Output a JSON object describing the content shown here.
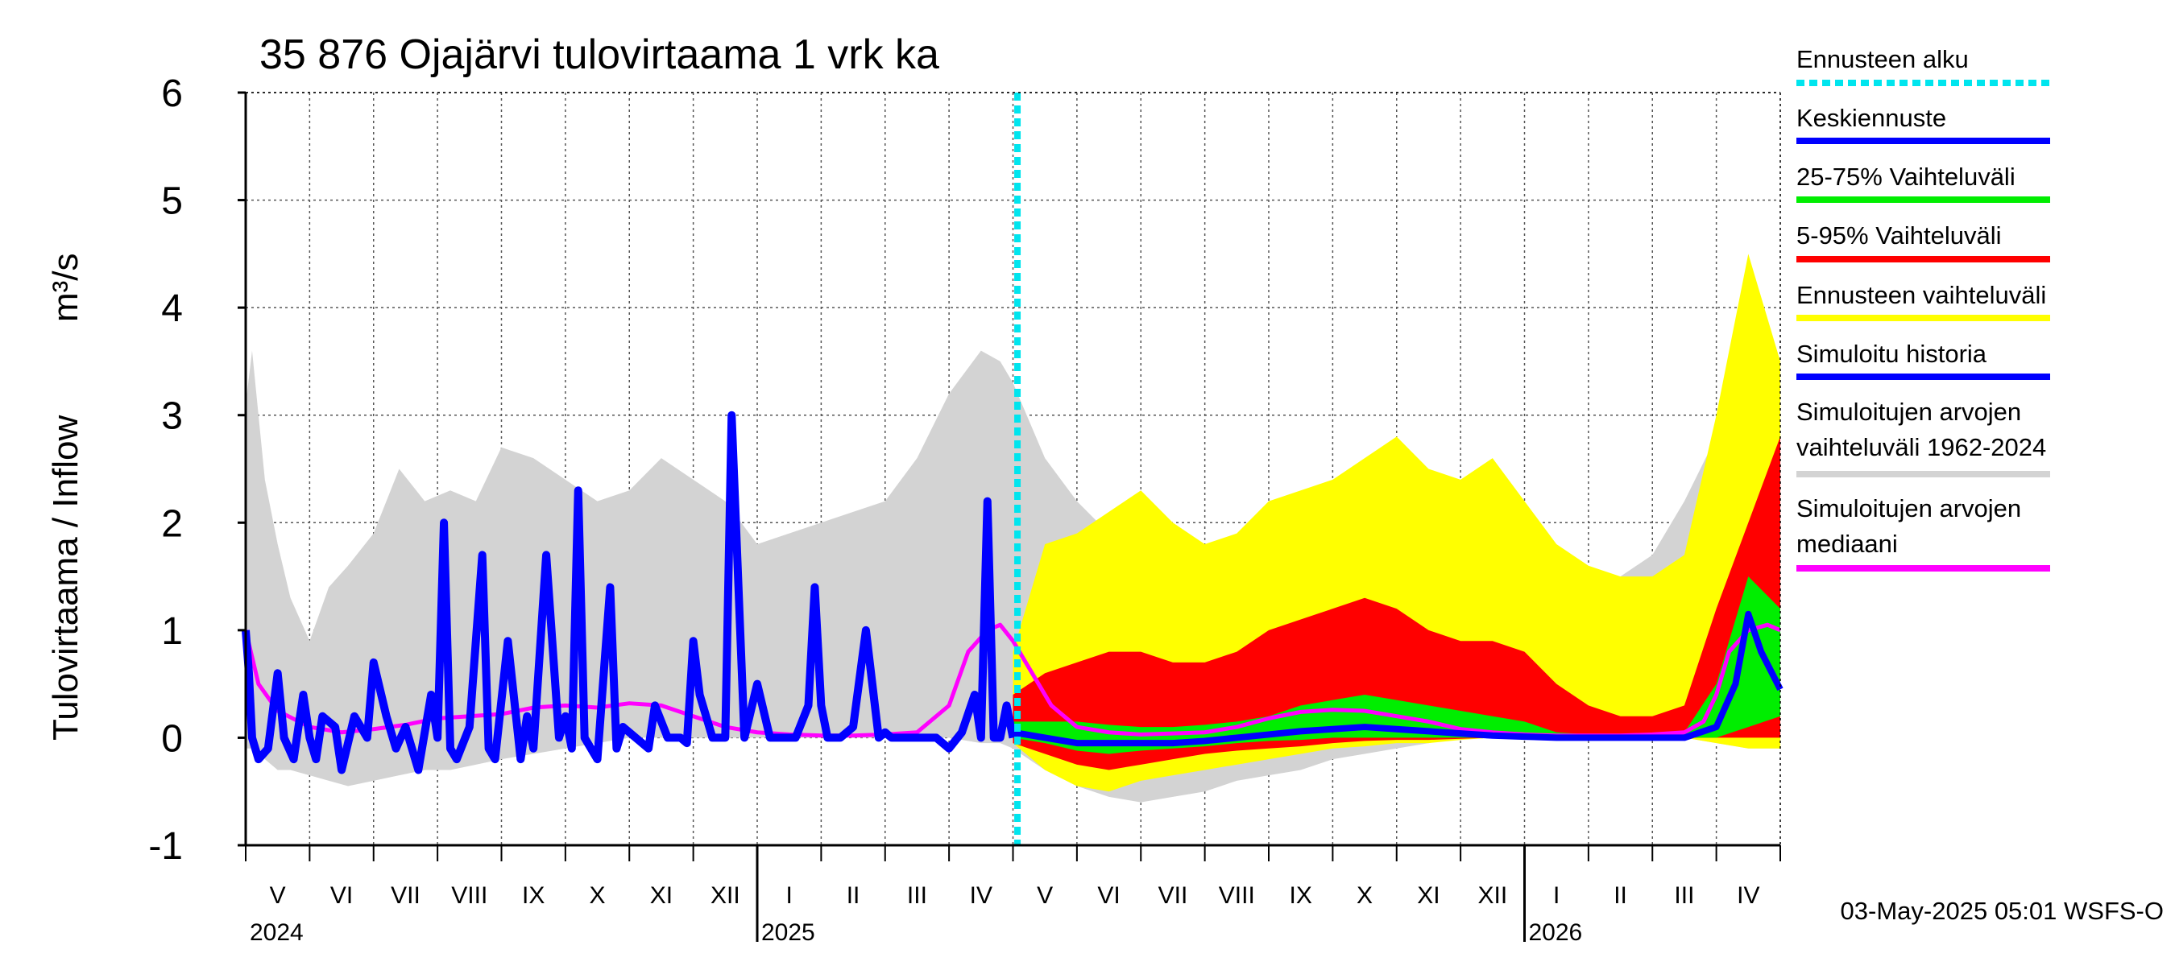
{
  "chart_data": {
    "type": "area",
    "title": "35 876 Ojajärvi tulovirtaama 1 vrk ka",
    "ylabel": "Tulovirtaama / Inflow",
    "yunit": "m³/s",
    "ylim": [
      -1,
      6
    ],
    "yticks": [
      "6",
      "5",
      "4",
      "3",
      "2",
      "1",
      "0",
      "-1"
    ],
    "grid": true,
    "legend_placement": "right",
    "months": [
      "V",
      "VI",
      "VII",
      "VIII",
      "IX",
      "X",
      "XI",
      "XII",
      "I",
      "II",
      "III",
      "IV",
      "V",
      "VI",
      "VII",
      "VIII",
      "IX",
      "X",
      "XI",
      "XII",
      "I",
      "II",
      "III",
      "IV"
    ],
    "years": [
      "2024",
      "2025",
      "2026"
    ],
    "forecast_start": "2025-05-03",
    "footer": "03-May-2025 05:01 WSFS-O",
    "colors": {
      "forecast_start": "#00e5ee",
      "mean_forecast": "#0000ff",
      "p25_75": "#00ee00",
      "p5_95": "#ff0000",
      "forecast_range": "#ffff00",
      "simulated_history": "#0000ff",
      "historical_range": "#d3d3d3",
      "historical_median": "#ff00ff"
    },
    "legend": [
      {
        "key": "forecast_start",
        "label": "Ennusteen alku"
      },
      {
        "key": "mean_forecast",
        "label": "Keskiennuste"
      },
      {
        "key": "p25_75",
        "label": "25-75% Vaihteluväli"
      },
      {
        "key": "p5_95",
        "label": "5-95% Vaihteluväli"
      },
      {
        "key": "forecast_range",
        "label": "Ennusteen vaihteluväli"
      },
      {
        "key": "simulated_history",
        "label": "Simuloitu historia"
      },
      {
        "key": "historical_range",
        "label": "Simuloitujen arvojen",
        "label2": "vaihteluväli 1962-2024"
      },
      {
        "key": "historical_median",
        "label": "Simuloitujen arvojen",
        "label2": "mediaani"
      }
    ],
    "series": {
      "historical_range": {
        "x": [
          0,
          0.1,
          0.2,
          0.3,
          0.5,
          0.7,
          1.0,
          1.3,
          1.6,
          2.0,
          2.4,
          2.8,
          3.2,
          3.6,
          4.0,
          4.5,
          5.0,
          5.5,
          6.0,
          6.5,
          7.0,
          7.5,
          8.0,
          8.5,
          9.0,
          9.5,
          10.0,
          10.5,
          11.0,
          11.5,
          11.8,
          12.0,
          12.5,
          13.0,
          13.5,
          14.0,
          14.5,
          15.0,
          15.5,
          16.0,
          16.5,
          17.0,
          17.5,
          18.0,
          18.5,
          19.0,
          19.5,
          20.0,
          20.5,
          21.0,
          21.5,
          22.0,
          22.5,
          23.0,
          23.5,
          24.0
        ],
        "upper": [
          3.1,
          3.6,
          3.0,
          2.4,
          1.8,
          1.3,
          0.9,
          1.4,
          1.6,
          1.9,
          2.5,
          2.2,
          2.3,
          2.2,
          2.7,
          2.6,
          2.4,
          2.2,
          2.3,
          2.6,
          2.4,
          2.2,
          1.8,
          1.9,
          2.0,
          2.1,
          2.2,
          2.6,
          3.2,
          3.6,
          3.5,
          3.3,
          2.6,
          2.2,
          1.9,
          1.8,
          1.7,
          1.6,
          1.5,
          1.7,
          1.8,
          1.9,
          2.0,
          2.1,
          2.0,
          1.9,
          1.8,
          1.7,
          1.5,
          1.4,
          1.5,
          1.7,
          2.2,
          2.8,
          3.2,
          3.3
        ],
        "lower": [
          -0.1,
          -0.1,
          -0.1,
          -0.2,
          -0.3,
          -0.3,
          -0.35,
          -0.4,
          -0.45,
          -0.4,
          -0.35,
          -0.3,
          -0.3,
          -0.25,
          -0.2,
          -0.15,
          -0.1,
          -0.05,
          0,
          0,
          0,
          0,
          0,
          0,
          0,
          0,
          0,
          0,
          0,
          -0.05,
          -0.05,
          -0.1,
          -0.3,
          -0.45,
          -0.55,
          -0.6,
          -0.55,
          -0.5,
          -0.4,
          -0.35,
          -0.3,
          -0.2,
          -0.15,
          -0.1,
          -0.05,
          0,
          0,
          0,
          0,
          0,
          0,
          0,
          0,
          -0.05,
          -0.1,
          -0.1
        ]
      },
      "historical_median": {
        "x": [
          0,
          0.2,
          0.5,
          1.0,
          1.5,
          2.0,
          2.5,
          3.0,
          3.5,
          4.0,
          4.5,
          5.0,
          5.5,
          6.0,
          6.5,
          7.0,
          7.5,
          8.0,
          8.5,
          9.0,
          9.5,
          10.0,
          10.5,
          11.0,
          11.3,
          11.6,
          11.8,
          12.0,
          12.3,
          12.6,
          13.0,
          13.5,
          14.0,
          14.5,
          15.0,
          15.5,
          16.0,
          16.5,
          17.0,
          17.5,
          18.0,
          18.5,
          19.0,
          19.5,
          20.0,
          20.5,
          21.0,
          21.5,
          22.0,
          22.5,
          22.8,
          23.0,
          23.2,
          23.5,
          23.8,
          24.0
        ],
        "values": [
          1.0,
          0.5,
          0.25,
          0.1,
          0.05,
          0.08,
          0.12,
          0.18,
          0.2,
          0.22,
          0.28,
          0.3,
          0.28,
          0.32,
          0.3,
          0.2,
          0.1,
          0.05,
          0.03,
          0.02,
          0.02,
          0.03,
          0.05,
          0.3,
          0.8,
          1.0,
          1.05,
          0.9,
          0.6,
          0.3,
          0.1,
          0.05,
          0.03,
          0.04,
          0.05,
          0.1,
          0.18,
          0.24,
          0.26,
          0.25,
          0.2,
          0.15,
          0.08,
          0.05,
          0.03,
          0.02,
          0.02,
          0.02,
          0.03,
          0.05,
          0.15,
          0.4,
          0.8,
          1.0,
          1.05,
          1.0
        ]
      },
      "simulated_history": {
        "x": [
          0,
          0.05,
          0.1,
          0.2,
          0.35,
          0.5,
          0.6,
          0.75,
          0.9,
          1.0,
          1.1,
          1.2,
          1.4,
          1.5,
          1.7,
          1.9,
          2.0,
          2.2,
          2.35,
          2.5,
          2.7,
          2.9,
          3.0,
          3.1,
          3.2,
          3.3,
          3.5,
          3.7,
          3.8,
          3.9,
          4.1,
          4.3,
          4.4,
          4.5,
          4.7,
          4.9,
          5.0,
          5.1,
          5.2,
          5.3,
          5.5,
          5.7,
          5.8,
          5.9,
          6.1,
          6.3,
          6.4,
          6.6,
          6.8,
          6.9,
          7.0,
          7.1,
          7.3,
          7.5,
          7.6,
          7.8,
          8.0,
          8.2,
          8.4,
          8.6,
          8.8,
          8.9,
          9.0,
          9.1,
          9.3,
          9.5,
          9.7,
          9.9,
          10.0,
          10.1,
          10.2,
          10.4,
          10.6,
          10.8,
          11.0,
          11.2,
          11.4,
          11.5,
          11.6,
          11.7,
          11.8,
          11.9,
          12.0
        ],
        "values": [
          1.0,
          0.6,
          0.0,
          -0.2,
          -0.1,
          0.6,
          0.0,
          -0.2,
          0.4,
          0.0,
          -0.2,
          0.2,
          0.1,
          -0.3,
          0.2,
          0.0,
          0.7,
          0.2,
          -0.1,
          0.1,
          -0.3,
          0.4,
          0.0,
          2.0,
          -0.1,
          -0.2,
          0.1,
          1.7,
          -0.1,
          -0.2,
          0.9,
          -0.2,
          0.2,
          -0.1,
          1.7,
          0.0,
          0.2,
          -0.1,
          2.3,
          0.0,
          -0.2,
          1.4,
          -0.1,
          0.1,
          0.0,
          -0.1,
          0.3,
          0.0,
          0.0,
          -0.05,
          0.9,
          0.4,
          0.0,
          0.0,
          3.0,
          0.0,
          0.5,
          0.0,
          0.0,
          0.0,
          0.3,
          1.4,
          0.3,
          0.0,
          0.0,
          0.1,
          1.0,
          0.0,
          0.05,
          0.0,
          0.0,
          0.0,
          0.0,
          0.0,
          -0.1,
          0.05,
          0.4,
          0.0,
          2.2,
          0.0,
          0.0,
          0.3,
          0.0
        ]
      },
      "forecast_range": {
        "x": [
          12.0,
          12.5,
          13.0,
          13.5,
          14.0,
          14.5,
          15.0,
          15.5,
          16.0,
          16.5,
          17.0,
          17.5,
          18.0,
          18.5,
          19.0,
          19.5,
          20.0,
          20.5,
          21.0,
          21.5,
          22.0,
          22.5,
          23.0,
          23.5,
          24.0
        ],
        "upper": [
          0.8,
          1.8,
          1.9,
          2.1,
          2.3,
          2.0,
          1.8,
          1.9,
          2.2,
          2.3,
          2.4,
          2.6,
          2.8,
          2.5,
          2.4,
          2.6,
          2.2,
          1.8,
          1.6,
          1.5,
          1.5,
          1.7,
          3.0,
          4.5,
          3.5
        ],
        "lower": [
          -0.05,
          -0.3,
          -0.45,
          -0.5,
          -0.4,
          -0.35,
          -0.3,
          -0.25,
          -0.2,
          -0.15,
          -0.1,
          -0.08,
          -0.05,
          -0.05,
          -0.02,
          0,
          0,
          0,
          0,
          0,
          0,
          0,
          -0.05,
          -0.1,
          -0.1
        ]
      },
      "p5_95": {
        "x": [
          12.0,
          12.5,
          13.0,
          13.5,
          14.0,
          14.5,
          15.0,
          15.5,
          16.0,
          16.5,
          17.0,
          17.5,
          18.0,
          18.5,
          19.0,
          19.5,
          20.0,
          20.5,
          21.0,
          21.5,
          22.0,
          22.5,
          23.0,
          23.5,
          24.0
        ],
        "upper": [
          0.4,
          0.6,
          0.7,
          0.8,
          0.8,
          0.7,
          0.7,
          0.8,
          1.0,
          1.1,
          1.2,
          1.3,
          1.2,
          1.0,
          0.9,
          0.9,
          0.8,
          0.5,
          0.3,
          0.2,
          0.2,
          0.3,
          1.2,
          2.0,
          2.8
        ],
        "lower": [
          -0.05,
          -0.15,
          -0.25,
          -0.3,
          -0.25,
          -0.2,
          -0.15,
          -0.12,
          -0.1,
          -0.08,
          -0.05,
          -0.03,
          -0.02,
          -0.02,
          -0.01,
          0,
          0,
          0,
          0,
          0,
          0,
          0,
          0,
          0,
          0
        ]
      },
      "p25_75": {
        "x": [
          12.0,
          12.5,
          13.0,
          13.5,
          14.0,
          14.5,
          15.0,
          15.5,
          16.0,
          16.5,
          17.0,
          17.5,
          18.0,
          18.5,
          19.0,
          19.5,
          20.0,
          20.5,
          21.0,
          21.5,
          22.0,
          22.5,
          23.0,
          23.5,
          24.0
        ],
        "upper": [
          0.15,
          0.15,
          0.15,
          0.12,
          0.1,
          0.1,
          0.12,
          0.15,
          0.2,
          0.3,
          0.35,
          0.4,
          0.35,
          0.3,
          0.25,
          0.2,
          0.15,
          0.05,
          0.03,
          0.02,
          0.02,
          0.05,
          0.5,
          1.5,
          1.2
        ],
        "lower": [
          0.0,
          -0.05,
          -0.12,
          -0.15,
          -0.12,
          -0.1,
          -0.08,
          -0.05,
          -0.03,
          -0.02,
          0.0,
          0.0,
          0.0,
          0.0,
          0.0,
          0.0,
          0.0,
          0.0,
          0.0,
          0.0,
          0.0,
          0.0,
          0.0,
          0.1,
          0.2
        ]
      },
      "mean_forecast": {
        "x": [
          12.0,
          12.5,
          13.0,
          13.5,
          14.0,
          14.5,
          15.0,
          15.5,
          16.0,
          16.5,
          17.0,
          17.5,
          18.0,
          18.5,
          19.0,
          19.5,
          20.0,
          20.5,
          21.0,
          21.5,
          22.0,
          22.5,
          23.0,
          23.3,
          23.5,
          23.7,
          24.0
        ],
        "values": [
          0.05,
          0.0,
          -0.05,
          -0.05,
          -0.05,
          -0.05,
          -0.03,
          0.0,
          0.03,
          0.06,
          0.08,
          0.1,
          0.08,
          0.06,
          0.04,
          0.02,
          0.01,
          0.0,
          0.0,
          0.0,
          0.0,
          0.0,
          0.1,
          0.5,
          1.15,
          0.8,
          0.45
        ]
      }
    }
  }
}
